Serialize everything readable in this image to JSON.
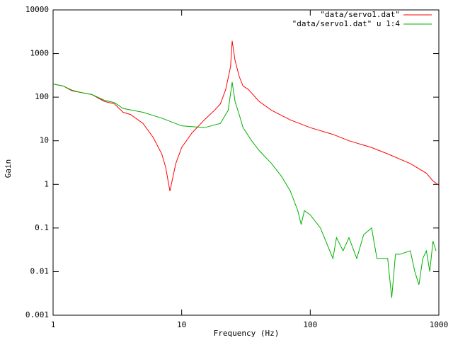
{
  "chart_data": {
    "type": "line",
    "xlabel": "Frequency (Hz)",
    "ylabel": "Gain",
    "xscale": "log",
    "yscale": "log",
    "xlim": [
      1,
      1000
    ],
    "ylim": [
      0.001,
      10000
    ],
    "xticks": [
      1,
      10,
      100,
      1000
    ],
    "yticks": [
      0.001,
      0.01,
      0.1,
      1,
      10,
      100,
      1000,
      10000
    ],
    "legend": "top right",
    "series": [
      {
        "name": "\"data/servo1.dat\"",
        "color": "#ff0000",
        "x": [
          1,
          1.2,
          1.4,
          1.6,
          2,
          2.5,
          3,
          3.5,
          4,
          5,
          6,
          7,
          7.5,
          8.1,
          9,
          10,
          12,
          15,
          18,
          20,
          22,
          24,
          24.7,
          26,
          28,
          30,
          33,
          40,
          50,
          70,
          100,
          150,
          200,
          300,
          400,
          600,
          800,
          900,
          1000
        ],
        "values": [
          200,
          180,
          140,
          130,
          115,
          80,
          70,
          45,
          40,
          25,
          12,
          5,
          2.5,
          0.7,
          3,
          7,
          15,
          30,
          50,
          70,
          150,
          500,
          1950,
          700,
          300,
          180,
          150,
          80,
          50,
          30,
          20,
          14,
          10,
          7,
          5,
          3,
          1.8,
          1.2,
          0.95
        ]
      },
      {
        "name": "\"data/servo1.dat\" u 1:4",
        "color": "#00b000",
        "x": [
          1,
          1.2,
          1.4,
          1.6,
          2,
          2.5,
          3,
          3.5,
          4,
          5,
          7,
          10,
          15,
          20,
          23,
          24.7,
          26,
          28,
          30,
          35,
          40,
          50,
          60,
          70,
          80,
          85,
          90,
          100,
          120,
          150,
          160,
          180,
          200,
          230,
          260,
          300,
          330,
          400,
          430,
          460,
          500,
          600,
          650,
          700,
          750,
          800,
          850,
          900,
          950
        ],
        "values": [
          200,
          180,
          145,
          130,
          115,
          85,
          75,
          55,
          51,
          45,
          33,
          22,
          20,
          25,
          50,
          220,
          80,
          40,
          20,
          10,
          6,
          3,
          1.5,
          0.7,
          0.25,
          0.12,
          0.25,
          0.2,
          0.1,
          0.02,
          0.06,
          0.03,
          0.06,
          0.02,
          0.07,
          0.1,
          0.02,
          0.02,
          0.0025,
          0.025,
          0.025,
          0.03,
          0.01,
          0.005,
          0.02,
          0.03,
          0.01,
          0.05,
          0.03
        ]
      }
    ]
  }
}
